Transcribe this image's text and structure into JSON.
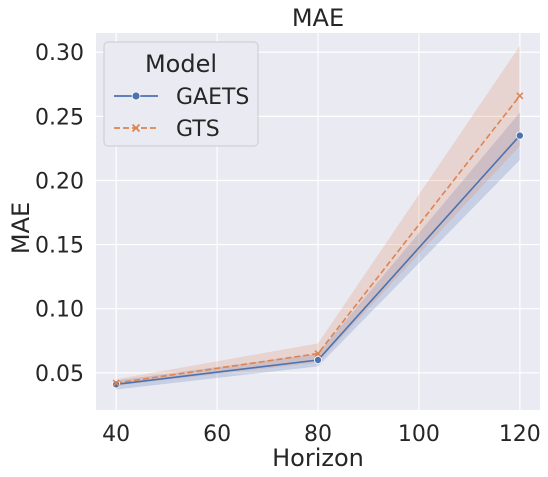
{
  "chart_data": {
    "type": "line",
    "title": "MAE",
    "xlabel": "Horizon",
    "ylabel": "MAE",
    "x": [
      40,
      80,
      120
    ],
    "xlim": [
      36,
      124
    ],
    "ylim": [
      0.021,
      0.315
    ],
    "xticks": [
      40,
      60,
      80,
      100,
      120
    ],
    "xtick_labels": [
      "40",
      "60",
      "80",
      "100",
      "120"
    ],
    "yticks": [
      0.05,
      0.1,
      0.15,
      0.2,
      0.25,
      0.3
    ],
    "ytick_labels": [
      "0.05",
      "0.10",
      "0.15",
      "0.20",
      "0.25",
      "0.30"
    ],
    "grid": true,
    "legend": {
      "title": "Model",
      "placement": "top-left"
    },
    "series": [
      {
        "name": "GAETS",
        "values": [
          0.041,
          0.06,
          0.235
        ],
        "lower": [
          0.037,
          0.055,
          0.216
        ],
        "upper": [
          0.044,
          0.065,
          0.253
        ],
        "color": "#4c72b0",
        "dash": "solid",
        "marker": "circle"
      },
      {
        "name": "GTS",
        "values": [
          0.042,
          0.065,
          0.266
        ],
        "lower": [
          0.04,
          0.058,
          0.227
        ],
        "upper": [
          0.045,
          0.073,
          0.305
        ],
        "color": "#dd8452",
        "dash": "dashed",
        "marker": "x"
      }
    ]
  }
}
